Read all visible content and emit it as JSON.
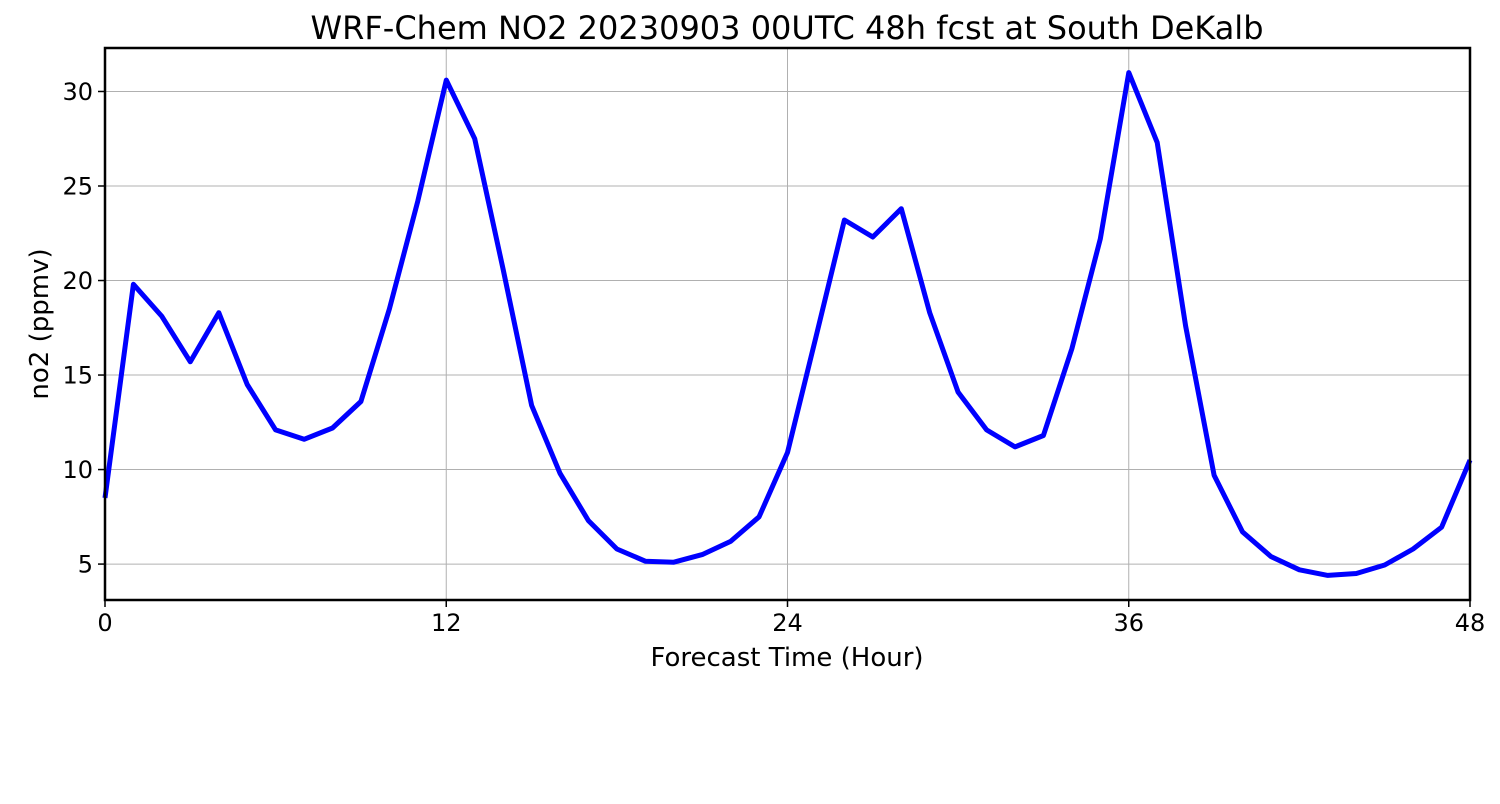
{
  "chart_data": {
    "type": "line",
    "title": "WRF-Chem NO2  20230903 00UTC 48h fcst at South DeKalb",
    "xlabel": "Forecast Time (Hour)",
    "ylabel": "no2  (ppmv)",
    "xlim": [
      0,
      48
    ],
    "ylim": [
      3.1,
      32.3
    ],
    "xticks": [
      0,
      12,
      24,
      36,
      48
    ],
    "yticks": [
      5,
      10,
      15,
      20,
      25,
      30
    ],
    "grid": true,
    "series": [
      {
        "color": "#0000ff",
        "x": [
          0,
          1,
          2,
          3,
          4,
          5,
          6,
          7,
          8,
          9,
          10,
          11,
          12,
          13,
          14,
          15,
          16,
          17,
          18,
          19,
          20,
          21,
          22,
          23,
          24,
          25,
          26,
          27,
          28,
          29,
          30,
          31,
          32,
          33,
          34,
          35,
          36,
          37,
          38,
          39,
          40,
          41,
          42,
          43,
          44,
          45,
          46,
          47,
          48
        ],
        "y": [
          8.5,
          19.8,
          18.1,
          15.7,
          18.3,
          14.5,
          12.1,
          11.6,
          12.2,
          13.6,
          18.5,
          24.2,
          30.6,
          27.5,
          20.6,
          13.4,
          9.8,
          7.3,
          5.8,
          5.15,
          5.1,
          5.5,
          6.2,
          7.5,
          10.9,
          17.0,
          23.2,
          22.3,
          23.8,
          18.3,
          14.1,
          12.1,
          11.2,
          11.8,
          16.4,
          22.2,
          31.0,
          27.3,
          17.6,
          9.7,
          6.7,
          5.4,
          4.7,
          4.4,
          4.5,
          4.95,
          5.8,
          6.95,
          10.5
        ]
      }
    ]
  }
}
